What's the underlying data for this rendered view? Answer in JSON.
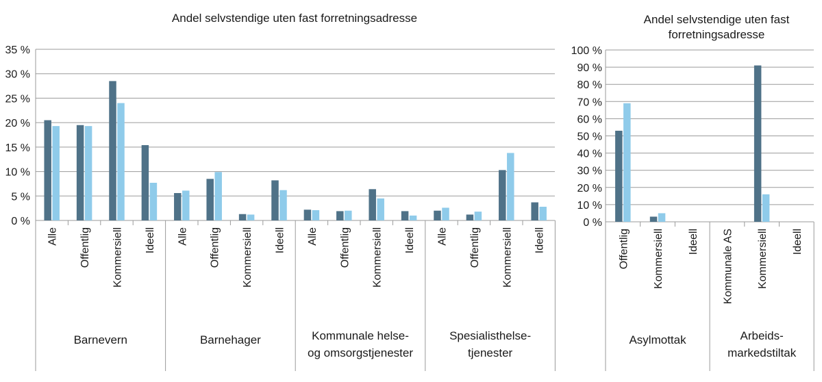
{
  "colors": {
    "series_dark": "#4f7288",
    "series_light": "#8fcbea",
    "axis": "#9a9a9a",
    "text": "#1a1a1a"
  },
  "chart_data": [
    {
      "type": "bar",
      "title": "Andel selvstendige uten fast forretningsadresse",
      "ylim": [
        0,
        35
      ],
      "yticks": [
        0,
        5,
        10,
        15,
        20,
        25,
        30,
        35
      ],
      "ytick_labels": [
        "0 %",
        "5 %",
        "10 %",
        "15 %",
        "20 %",
        "25 %",
        "30 %",
        "35 %"
      ],
      "groups": [
        {
          "label": "Barnevern",
          "categories": [
            "Alle",
            "Offentlig",
            "Kommersiell",
            "Ideell"
          ]
        },
        {
          "label": "Barnehager",
          "categories": [
            "Alle",
            "Offentlig",
            "Kommersiell",
            "Ideell"
          ]
        },
        {
          "label": "Kommunale helse- og omsorgstjenester",
          "label_lines": [
            "Kommunale helse-",
            "og omsorgstjenester"
          ],
          "categories": [
            "Alle",
            "Offentlig",
            "Kommersiell",
            "Ideell"
          ]
        },
        {
          "label": "Spesialisthelse- tjenester",
          "label_lines": [
            "Spesialisthelse-",
            "tjenester"
          ],
          "categories": [
            "Alle",
            "Offentlig",
            "Kommersiell",
            "Ideell"
          ]
        }
      ],
      "series": [
        {
          "values": [
            20.5,
            19.5,
            28.5,
            15.4,
            5.6,
            8.5,
            1.3,
            8.2,
            2.2,
            1.9,
            6.4,
            1.9,
            2.0,
            1.2,
            10.3,
            3.7
          ]
        },
        {
          "values": [
            19.3,
            19.3,
            24.0,
            7.7,
            6.1,
            9.9,
            1.2,
            6.2,
            2.1,
            2.0,
            4.5,
            1.0,
            2.6,
            1.8,
            13.8,
            2.8
          ]
        }
      ]
    },
    {
      "type": "bar",
      "title": "Andel selvstendige uten fast forretningsadresse",
      "title_lines": [
        "Andel selvstendige uten fast",
        "forretningsadresse"
      ],
      "ylim": [
        0,
        100
      ],
      "yticks": [
        0,
        10,
        20,
        30,
        40,
        50,
        60,
        70,
        80,
        90,
        100
      ],
      "ytick_labels": [
        "0 %",
        "10 %",
        "20 %",
        "30 %",
        "40 %",
        "50 %",
        "60 %",
        "70 %",
        "80 %",
        "90 %",
        "100 %"
      ],
      "groups": [
        {
          "label": "Asylmottak",
          "categories": [
            "Offentlig",
            "Kommersiell",
            "Ideell"
          ]
        },
        {
          "label": "Arbeids- markedstiltak",
          "label_lines": [
            "Arbeids-",
            "markedstiltak"
          ],
          "categories": [
            "Kommunale AS",
            "Kommersiell",
            "Ideell"
          ]
        }
      ],
      "series": [
        {
          "values": [
            53,
            3,
            0,
            0,
            91,
            0
          ]
        },
        {
          "values": [
            69,
            5,
            0,
            0,
            16,
            0
          ]
        }
      ]
    }
  ]
}
